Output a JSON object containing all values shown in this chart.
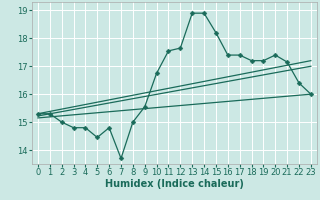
{
  "xlabel": "Humidex (Indice chaleur)",
  "bg_color": "#cce8e4",
  "grid_color": "#ffffff",
  "line_color": "#1a6b5a",
  "xlim": [
    -0.5,
    23.5
  ],
  "ylim": [
    13.5,
    19.3
  ],
  "yticks": [
    14,
    15,
    16,
    17,
    18,
    19
  ],
  "xticks": [
    0,
    1,
    2,
    3,
    4,
    5,
    6,
    7,
    8,
    9,
    10,
    11,
    12,
    13,
    14,
    15,
    16,
    17,
    18,
    19,
    20,
    21,
    22,
    23
  ],
  "main_x": [
    0,
    1,
    2,
    3,
    4,
    5,
    6,
    7,
    8,
    9,
    10,
    11,
    12,
    13,
    14,
    15,
    16,
    17,
    18,
    19,
    20,
    21,
    22,
    23
  ],
  "main_y": [
    15.3,
    15.3,
    15.0,
    14.8,
    14.8,
    14.45,
    14.8,
    13.7,
    15.0,
    15.55,
    16.75,
    17.55,
    17.65,
    18.9,
    18.9,
    18.2,
    17.4,
    17.4,
    17.2,
    17.2,
    17.4,
    17.15,
    16.4,
    16.0
  ],
  "trend1_x": [
    0,
    23
  ],
  "trend1_y": [
    15.3,
    17.2
  ],
  "trend2_x": [
    0,
    23
  ],
  "trend2_y": [
    15.15,
    16.0
  ],
  "trend3_x": [
    0,
    23
  ],
  "trend3_y": [
    15.22,
    17.0
  ],
  "markersize": 2.5,
  "linewidth": 0.9,
  "xlabel_fontsize": 7,
  "tick_fontsize": 6
}
